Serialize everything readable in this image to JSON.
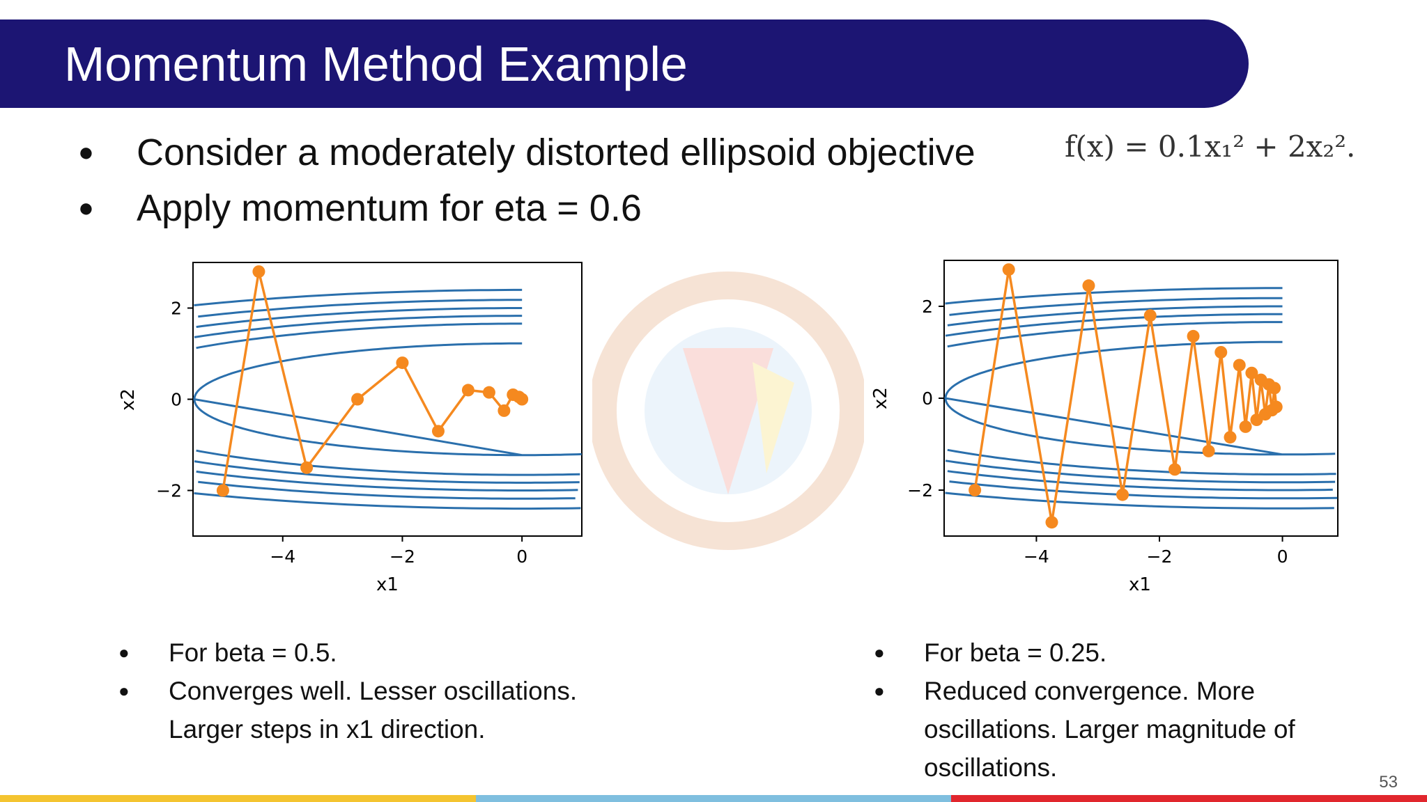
{
  "slide": {
    "title": "Momentum Method Example",
    "bullets": [
      "Consider a moderately distorted ellipsoid objective",
      "Apply momentum for eta = 0.6"
    ],
    "formula": "f(x) = 0.1x₁² + 2x₂².",
    "page_number": "53"
  },
  "plots": [
    {
      "x_ticks": [
        "−4",
        "−2",
        "0"
      ],
      "y_ticks": [
        "2",
        "0",
        "−2"
      ],
      "xlabel": "x1",
      "ylabel": "x2",
      "notes": [
        "For beta = 0.5.",
        "Converges well. Lesser oscillations.",
        "Larger steps in x1 direction."
      ]
    },
    {
      "x_ticks": [
        "−4",
        "−2",
        "0"
      ],
      "y_ticks": [
        "2",
        "0",
        "−2"
      ],
      "xlabel": "x1",
      "ylabel": "x2",
      "notes": [
        "For beta = 0.25.",
        "Reduced convergence. More",
        "oscillations.  Larger magnitude of",
        "oscillations."
      ]
    }
  ],
  "chart_data": [
    {
      "type": "line",
      "xlim": [
        -5.5,
        1.0
      ],
      "ylim": [
        -3.0,
        3.0
      ],
      "x": [
        -5.0,
        -4.4,
        -3.6,
        -2.75,
        -2.0,
        -1.4,
        -0.9,
        -0.55,
        -0.3,
        -0.15,
        -0.05,
        0.0
      ],
      "y": [
        -2.0,
        2.8,
        -1.5,
        0.0,
        0.8,
        -0.7,
        0.2,
        0.15,
        -0.25,
        0.1,
        0.05,
        0.0
      ]
    },
    {
      "type": "line",
      "xlim": [
        -5.5,
        0.9
      ],
      "ylim": [
        -3.0,
        3.0
      ],
      "x": [
        -5.0,
        -4.45,
        -3.75,
        -3.15,
        -2.6,
        -2.15,
        -1.75,
        -1.45,
        -1.2,
        -1.0,
        -0.85,
        -0.7,
        -0.6,
        -0.5,
        -0.42,
        -0.35,
        -0.28,
        -0.22,
        -0.17,
        -0.13,
        -0.1
      ],
      "y": [
        -2.0,
        2.8,
        -2.7,
        2.45,
        -2.1,
        1.8,
        -1.55,
        1.35,
        -1.15,
        1.0,
        -0.85,
        0.72,
        -0.62,
        0.55,
        -0.47,
        0.4,
        -0.35,
        0.3,
        -0.26,
        0.22,
        -0.19
      ]
    }
  ],
  "colors": {
    "title_bar": "#1c1573",
    "contour": "#2a6fac",
    "path": "#f5891f",
    "bottom_bar": [
      "#f4c430",
      "#7fbfdf",
      "#e1262d"
    ]
  }
}
